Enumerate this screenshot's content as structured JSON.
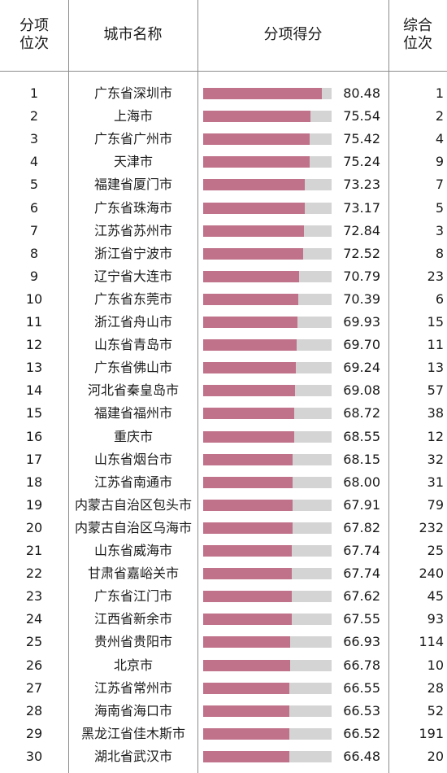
{
  "headers": {
    "rank_line1": "分项",
    "rank_line2": "位次",
    "city": "城市名称",
    "score": "分项得分",
    "total_line1": "综合",
    "total_line2": "位次"
  },
  "colors": {
    "bar_fill": "#c0728a",
    "bar_track": "#d4d4d4"
  },
  "chart_data": {
    "type": "bar",
    "orientation": "horizontal",
    "title": "",
    "xlabel": "",
    "ylabel": "",
    "categories": [
      "广东省深圳市",
      "上海市",
      "广东省广州市",
      "天津市",
      "福建省厦门市",
      "广东省珠海市",
      "江苏省苏州市",
      "浙江省宁波市",
      "辽宁省大连市",
      "广东省东莞市",
      "浙江省舟山市",
      "山东省青岛市",
      "广东省佛山市",
      "河北省秦皇岛市",
      "福建省福州市",
      "重庆市",
      "山东省烟台市",
      "江苏省南通市",
      "内蒙古自治区包头市",
      "内蒙古自治区乌海市",
      "山东省威海市",
      "甘肃省嘉峪关市",
      "广东省江门市",
      "江西省新余市",
      "贵州省贵阳市",
      "北京市",
      "江苏省常州市",
      "海南省海口市",
      "黑龙江省佳木斯市",
      "湖北省武汉市"
    ],
    "values": [
      80.48,
      75.54,
      75.42,
      75.24,
      73.23,
      73.17,
      72.84,
      72.52,
      70.79,
      70.39,
      69.93,
      69.7,
      69.24,
      69.08,
      68.72,
      68.55,
      68.15,
      68.0,
      67.91,
      67.82,
      67.74,
      67.74,
      67.62,
      67.55,
      66.93,
      66.78,
      66.55,
      66.53,
      66.52,
      66.48
    ],
    "value_labels": [
      "80.48",
      "75.54",
      "75.42",
      "75.24",
      "73.23",
      "73.17",
      "72.84",
      "72.52",
      "70.79",
      "70.39",
      "69.93",
      "69.70",
      "69.24",
      "69.08",
      "68.72",
      "68.55",
      "68.15",
      "68.00",
      "67.91",
      "67.82",
      "67.74",
      "67.74",
      "67.62",
      "67.55",
      "66.93",
      "66.78",
      "66.55",
      "66.53",
      "66.52",
      "66.48"
    ],
    "xlim": [
      0,
      100
    ],
    "ranks": [
      "1",
      "2",
      "3",
      "4",
      "5",
      "6",
      "7",
      "8",
      "9",
      "10",
      "11",
      "12",
      "13",
      "14",
      "15",
      "16",
      "17",
      "18",
      "19",
      "20",
      "21",
      "22",
      "23",
      "24",
      "25",
      "26",
      "27",
      "28",
      "29",
      "30"
    ],
    "overall_ranks": [
      "1",
      "2",
      "4",
      "9",
      "7",
      "5",
      "3",
      "8",
      "23",
      "6",
      "15",
      "11",
      "13",
      "57",
      "38",
      "12",
      "32",
      "31",
      "79",
      "232",
      "25",
      "240",
      "45",
      "93",
      "114",
      "10",
      "28",
      "52",
      "191",
      "20"
    ],
    "grid": false,
    "legend": "none"
  }
}
